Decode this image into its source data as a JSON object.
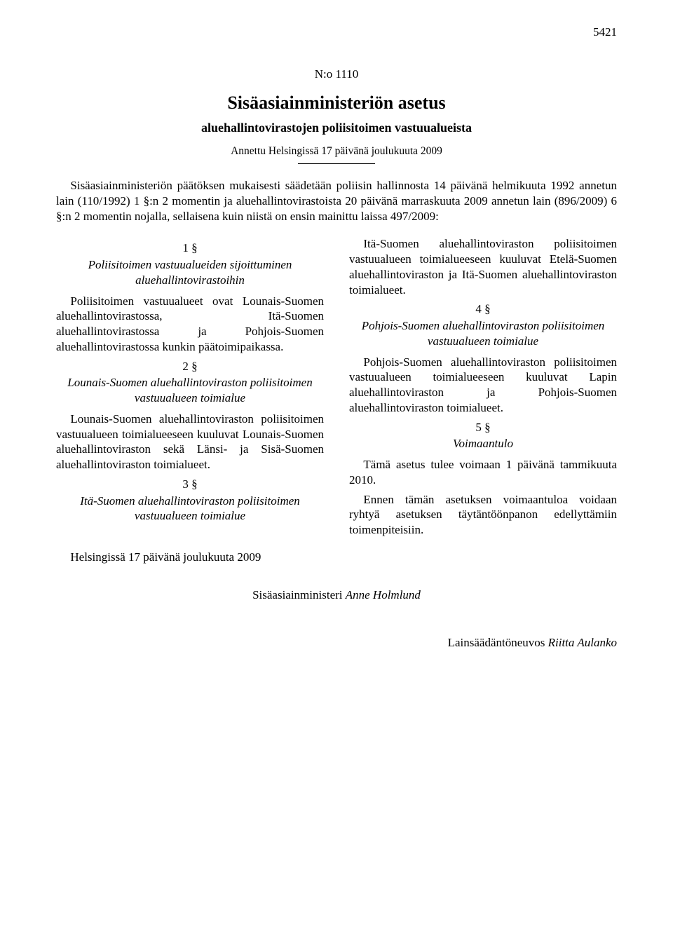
{
  "page_number": "5421",
  "doc_number": "N:o 1110",
  "title": "Sisäasiainministeriön asetus",
  "subtitle": "aluehallintovirastojen poliisitoimen vastuualueista",
  "given": "Annettu Helsingissä 17 päivänä joulukuuta 2009",
  "preamble": "Sisäasiainministeriön päätöksen mukaisesti säädetään poliisin hallinnosta 14 päivänä helmikuuta 1992 annetun lain (110/1992) 1 §:n 2 momentin ja aluehallintovirastoista 20 päivänä marraskuuta 2009 annetun lain (896/2009) 6 §:n 2 momentin nojalla, sellaisena kuin niistä on ensin mainittu laissa 497/2009:",
  "sections": {
    "s1": {
      "num": "1 §",
      "title": "Poliisitoimen vastuualueiden sijoittuminen aluehallintovirastoihin",
      "p1": "Poliisitoimen vastuualueet ovat Lounais-Suomen aluehallintovirastossa, Itä-Suomen aluehallintovirastossa ja Pohjois-Suomen aluehallintovirastossa kunkin päätoimipaikassa."
    },
    "s2": {
      "num": "2 §",
      "title": "Lounais-Suomen aluehallintoviraston poliisitoimen vastuualueen toimialue",
      "p1": "Lounais-Suomen aluehallintoviraston poliisitoimen vastuualueen toimialueeseen kuuluvat Lounais-Suomen aluehallintoviraston sekä Länsi- ja Sisä-Suomen aluehallintoviraston toimialueet."
    },
    "s3": {
      "num": "3 §",
      "title": "Itä-Suomen aluehallintoviraston poliisitoimen vastuualueen toimialue",
      "p1": "Itä-Suomen aluehallintoviraston poliisitoimen vastuualueen toimialueeseen kuuluvat Etelä-Suomen aluehallintoviraston ja Itä-Suomen aluehallintoviraston toimialueet."
    },
    "s4": {
      "num": "4 §",
      "title": "Pohjois-Suomen aluehallintoviraston poliisitoimen vastuualueen toimialue",
      "p1": "Pohjois-Suomen aluehallintoviraston poliisitoimen vastuualueen toimialueeseen kuuluvat Lapin aluehallintoviraston ja Pohjois-Suomen aluehallintoviraston toimialueet."
    },
    "s5": {
      "num": "5 §",
      "title": "Voimaantulo",
      "p1": "Tämä asetus tulee voimaan 1 päivänä tammikuuta 2010.",
      "p2": "Ennen tämän asetuksen voimaantuloa voidaan ryhtyä asetuksen täytäntöönpanon edellyttämiin toimenpiteisiin."
    }
  },
  "place_date": "Helsingissä 17 päivänä joulukuuta 2009",
  "signature_minister_role": "Sisäasiainministeri ",
  "signature_minister_name": "Anne Holmlund",
  "signature_counsel_role": "Lainsäädäntöneuvos ",
  "signature_counsel_name": "Riitta Aulanko"
}
